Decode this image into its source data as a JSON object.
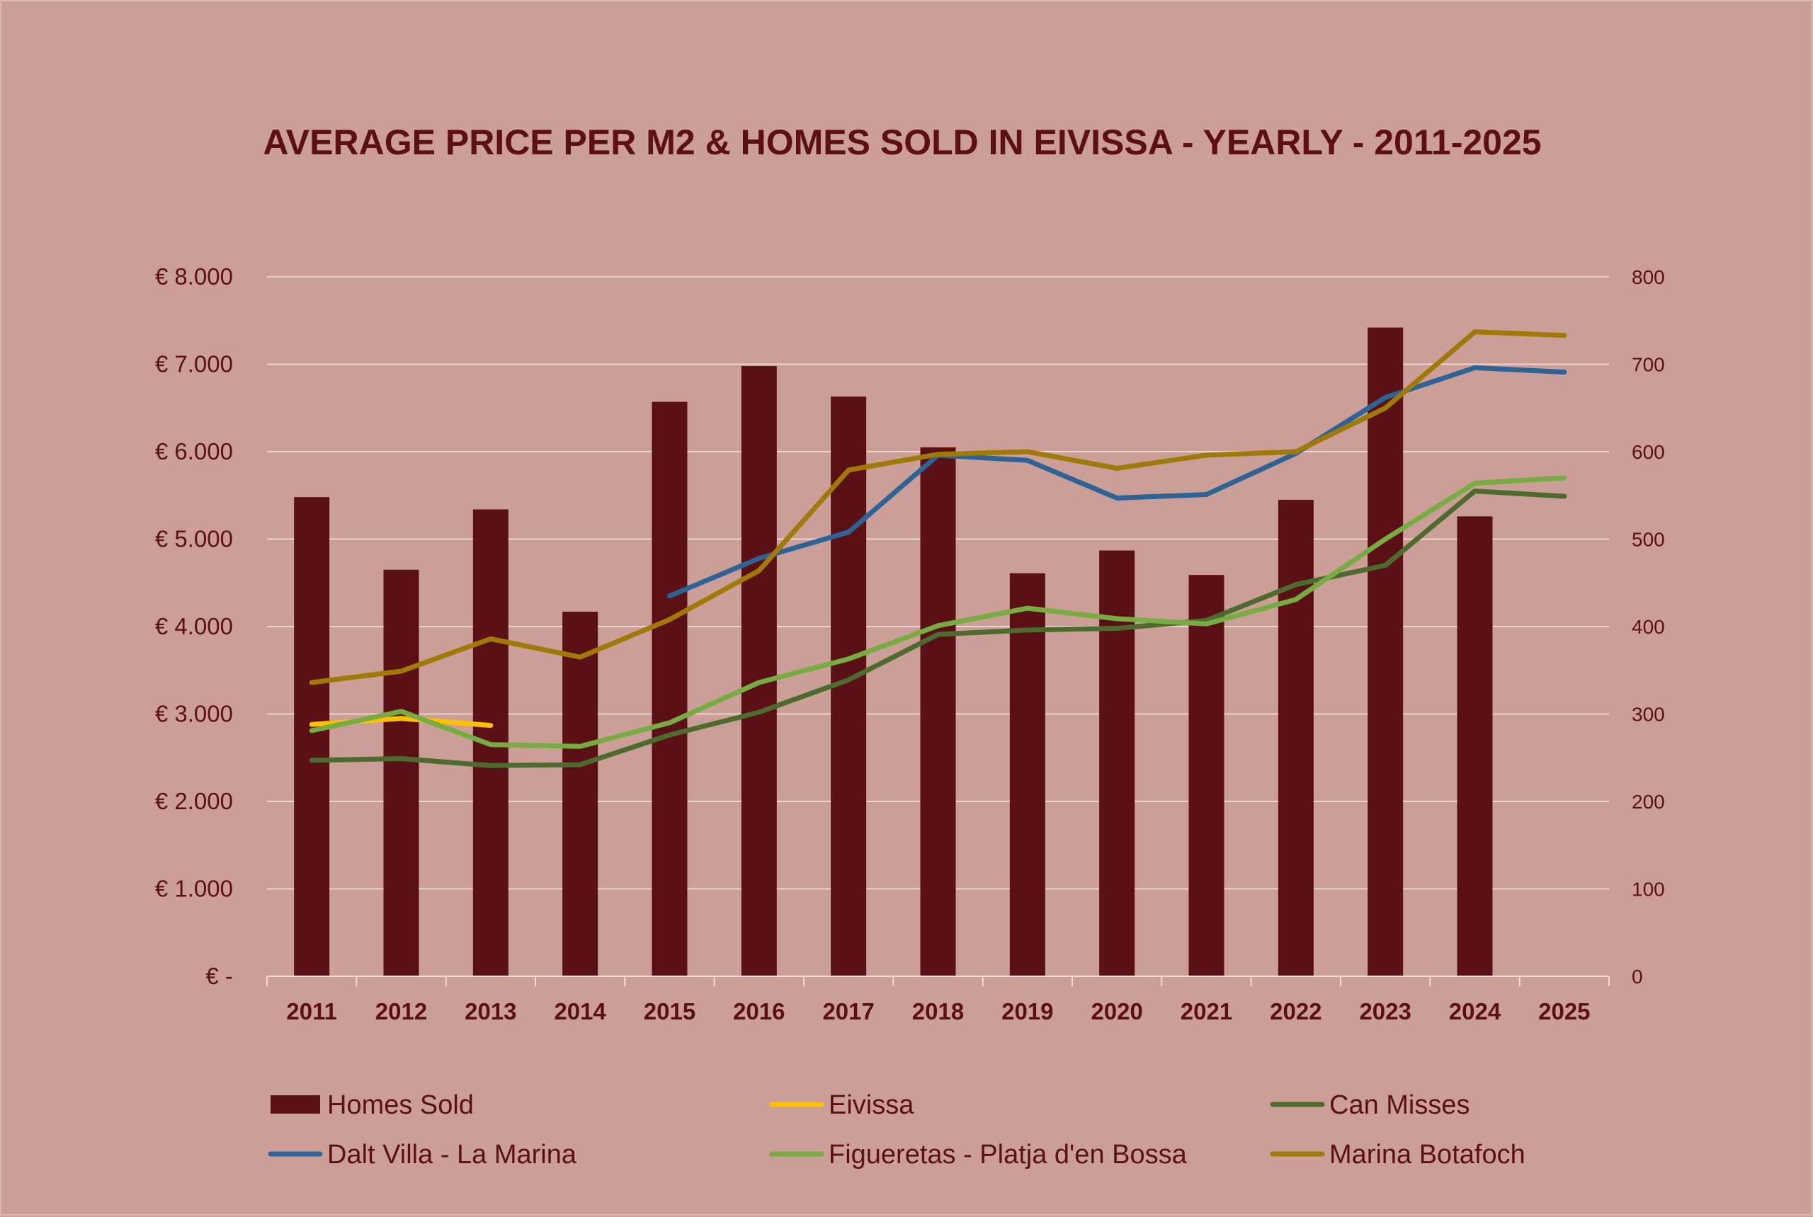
{
  "chart_data": {
    "type": "bar+line",
    "title": "AVERAGE PRICE PER M2 & HOMES SOLD IN EIVISSA - YEARLY - 2011-2025",
    "categories": [
      "2011",
      "2012",
      "2013",
      "2014",
      "2015",
      "2016",
      "2017",
      "2018",
      "2019",
      "2020",
      "2021",
      "2022",
      "2023",
      "2024",
      "2025"
    ],
    "y_left": {
      "min": 0,
      "max": 8000,
      "tick_values": [
        0,
        1000,
        2000,
        3000,
        4000,
        5000,
        6000,
        7000,
        8000
      ],
      "tick_labels": [
        "€ -",
        "€ 1.000",
        "€ 2.000",
        "€ 3.000",
        "€ 4.000",
        "€ 5.000",
        "€ 6.000",
        "€ 7.000",
        "€ 8.000"
      ]
    },
    "y_right": {
      "min": 0,
      "max": 800,
      "tick_values": [
        0,
        100,
        200,
        300,
        400,
        500,
        600,
        700,
        800
      ],
      "tick_labels": [
        "0",
        "100",
        "200",
        "300",
        "400",
        "500",
        "600",
        "700",
        "800"
      ]
    },
    "grid": true,
    "legend_position": "bottom",
    "bars": {
      "name": "Homes Sold",
      "axis": "right",
      "color": "#5a1015",
      "values": [
        548,
        465,
        534,
        417,
        657,
        698,
        663,
        605,
        461,
        487,
        459,
        545,
        742,
        526,
        null
      ]
    },
    "series": [
      {
        "name": "Eivissa",
        "color": "#ffc000",
        "values": [
          2880,
          2950,
          2870,
          null,
          null,
          null,
          null,
          null,
          null,
          null,
          null,
          null,
          null,
          null,
          null
        ]
      },
      {
        "name": "Can Misses",
        "color": "#4e6b2f",
        "values": [
          2470,
          2490,
          2410,
          2420,
          2760,
          3020,
          3390,
          3910,
          3960,
          3980,
          4070,
          4480,
          4700,
          5550,
          5490
        ]
      },
      {
        "name": "Dalt Villa - La Marina",
        "color": "#2e6395",
        "values": [
          null,
          null,
          null,
          null,
          4350,
          4780,
          5080,
          5960,
          5900,
          5470,
          5510,
          5980,
          6620,
          6960,
          6910
        ]
      },
      {
        "name": "Figueretas - Platja d'en Bossa",
        "color": "#76ac42",
        "values": [
          2810,
          3030,
          2650,
          2630,
          2900,
          3360,
          3630,
          4010,
          4210,
          4090,
          4030,
          4310,
          5000,
          5640,
          5700
        ]
      },
      {
        "name": "Marina Botafoch",
        "color": "#a07a08",
        "values": [
          3360,
          3490,
          3860,
          3650,
          4080,
          4640,
          5790,
          5970,
          6000,
          5810,
          5960,
          6000,
          6500,
          7370,
          7330
        ]
      }
    ]
  }
}
